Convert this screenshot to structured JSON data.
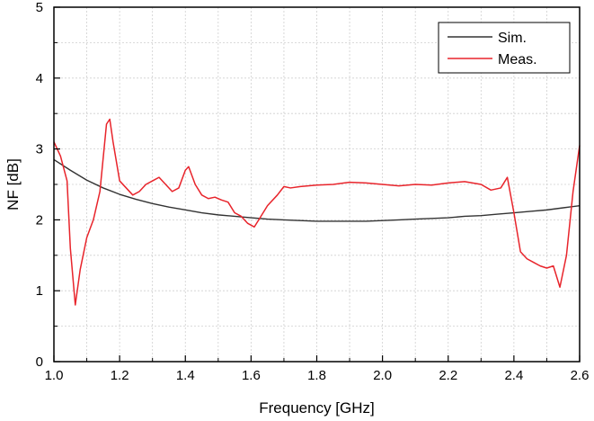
{
  "chart_data": {
    "type": "line",
    "xlabel": "Frequency [GHz]",
    "ylabel": "NF [dB]",
    "xlim": [
      1.0,
      2.6
    ],
    "ylim": [
      0,
      5
    ],
    "x_ticks": [
      "1.0",
      "1.2",
      "1.4",
      "1.6",
      "1.8",
      "2.0",
      "2.2",
      "2.4",
      "2.6"
    ],
    "y_ticks": [
      "0",
      "1",
      "2",
      "3",
      "4",
      "5"
    ],
    "grid": true,
    "legend_position": "top-right",
    "series": [
      {
        "name": "Sim.",
        "color": "#333333",
        "x": [
          1.0,
          1.05,
          1.1,
          1.15,
          1.2,
          1.25,
          1.3,
          1.35,
          1.4,
          1.45,
          1.5,
          1.55,
          1.6,
          1.65,
          1.7,
          1.75,
          1.8,
          1.85,
          1.9,
          1.95,
          2.0,
          2.05,
          2.1,
          2.15,
          2.2,
          2.25,
          2.3,
          2.35,
          2.4,
          2.45,
          2.5,
          2.55,
          2.6
        ],
        "y": [
          2.85,
          2.7,
          2.56,
          2.45,
          2.36,
          2.29,
          2.23,
          2.18,
          2.14,
          2.1,
          2.07,
          2.05,
          2.03,
          2.01,
          2.0,
          1.99,
          1.98,
          1.98,
          1.98,
          1.98,
          1.99,
          2.0,
          2.01,
          2.02,
          2.03,
          2.05,
          2.06,
          2.08,
          2.1,
          2.12,
          2.14,
          2.17,
          2.2
        ]
      },
      {
        "name": "Meas.",
        "color": "#e8242b",
        "x": [
          1.0,
          1.02,
          1.04,
          1.05,
          1.065,
          1.08,
          1.1,
          1.12,
          1.14,
          1.16,
          1.17,
          1.18,
          1.2,
          1.22,
          1.24,
          1.26,
          1.28,
          1.3,
          1.32,
          1.34,
          1.36,
          1.38,
          1.4,
          1.41,
          1.43,
          1.45,
          1.47,
          1.49,
          1.51,
          1.53,
          1.55,
          1.57,
          1.59,
          1.61,
          1.63,
          1.65,
          1.68,
          1.7,
          1.72,
          1.75,
          1.8,
          1.85,
          1.9,
          1.95,
          2.0,
          2.05,
          2.1,
          2.15,
          2.2,
          2.25,
          2.3,
          2.33,
          2.36,
          2.38,
          2.4,
          2.42,
          2.44,
          2.46,
          2.48,
          2.5,
          2.52,
          2.54,
          2.56,
          2.58,
          2.6
        ],
        "y": [
          3.1,
          2.9,
          2.55,
          1.6,
          0.8,
          1.3,
          1.75,
          2.0,
          2.4,
          3.35,
          3.42,
          3.1,
          2.55,
          2.45,
          2.35,
          2.4,
          2.5,
          2.55,
          2.6,
          2.5,
          2.4,
          2.45,
          2.7,
          2.75,
          2.5,
          2.35,
          2.3,
          2.32,
          2.28,
          2.25,
          2.1,
          2.05,
          1.95,
          1.9,
          2.05,
          2.2,
          2.35,
          2.47,
          2.45,
          2.47,
          2.49,
          2.5,
          2.53,
          2.52,
          2.5,
          2.48,
          2.5,
          2.49,
          2.52,
          2.54,
          2.5,
          2.42,
          2.45,
          2.6,
          2.1,
          1.55,
          1.45,
          1.4,
          1.35,
          1.32,
          1.35,
          1.05,
          1.5,
          2.4,
          3.05
        ]
      }
    ]
  }
}
